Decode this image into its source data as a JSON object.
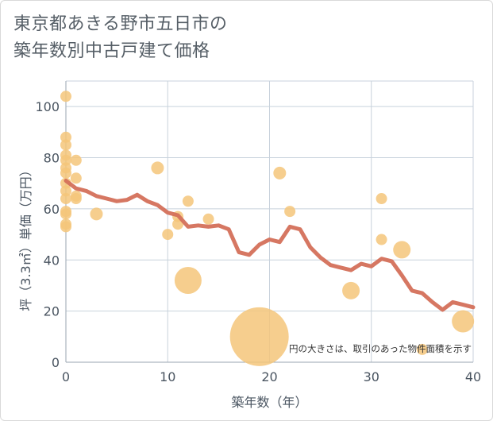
{
  "title_lines": [
    "東京都あきる野市五日市の",
    "築年数別中古戸建て価格"
  ],
  "chart_data": {
    "type": "scatter",
    "title": "東京都あきる野市五日市の築年数別中古戸建て価格",
    "xlabel": "築年数（年）",
    "ylabel": "坪（3.3㎡）単価（万円）",
    "xlim": [
      0,
      40
    ],
    "ylim": [
      0,
      110
    ],
    "x_ticks": [
      0,
      10,
      20,
      30,
      40
    ],
    "y_ticks": [
      0,
      20,
      40,
      60,
      80,
      100
    ],
    "x_tick_labels": [
      "0",
      "10",
      "20",
      "30",
      "40"
    ],
    "y_tick_labels": [
      "0",
      "20",
      "40",
      "60",
      "80",
      "100"
    ],
    "grid": true,
    "note": "円の大きさは、取引のあった物件面積を示す",
    "colors": {
      "bubble": "#f5c57a",
      "trend": "#d4705a",
      "grid": "#c8d2dc"
    },
    "series": [
      {
        "kind": "bubble",
        "points": [
          {
            "x": 0,
            "y": 104,
            "r": 7
          },
          {
            "x": 0,
            "y": 88,
            "r": 7
          },
          {
            "x": 0,
            "y": 85,
            "r": 7
          },
          {
            "x": 0,
            "y": 81,
            "r": 7
          },
          {
            "x": 0,
            "y": 79,
            "r": 7
          },
          {
            "x": 0,
            "y": 76,
            "r": 7
          },
          {
            "x": 0,
            "y": 74,
            "r": 7
          },
          {
            "x": 0,
            "y": 70,
            "r": 7
          },
          {
            "x": 0,
            "y": 67,
            "r": 7
          },
          {
            "x": 0,
            "y": 64,
            "r": 7
          },
          {
            "x": 0,
            "y": 59,
            "r": 7
          },
          {
            "x": 0,
            "y": 58,
            "r": 7
          },
          {
            "x": 0,
            "y": 54,
            "r": 7
          },
          {
            "x": 0,
            "y": 53,
            "r": 7
          },
          {
            "x": 1,
            "y": 79,
            "r": 7
          },
          {
            "x": 1,
            "y": 72,
            "r": 7
          },
          {
            "x": 1,
            "y": 65,
            "r": 7
          },
          {
            "x": 1,
            "y": 64,
            "r": 7
          },
          {
            "x": 3,
            "y": 58,
            "r": 8
          },
          {
            "x": 9,
            "y": 76,
            "r": 8
          },
          {
            "x": 10,
            "y": 50,
            "r": 7
          },
          {
            "x": 11,
            "y": 57,
            "r": 7
          },
          {
            "x": 11,
            "y": 54,
            "r": 7
          },
          {
            "x": 12,
            "y": 63,
            "r": 7
          },
          {
            "x": 12,
            "y": 32,
            "r": 17
          },
          {
            "x": 14,
            "y": 56,
            "r": 7
          },
          {
            "x": 19,
            "y": 10,
            "r": 37
          },
          {
            "x": 21,
            "y": 74,
            "r": 8
          },
          {
            "x": 22,
            "y": 59,
            "r": 7
          },
          {
            "x": 28,
            "y": 28,
            "r": 11
          },
          {
            "x": 31,
            "y": 64,
            "r": 7
          },
          {
            "x": 31,
            "y": 48,
            "r": 7
          },
          {
            "x": 33,
            "y": 44,
            "r": 11
          },
          {
            "x": 35,
            "y": 5,
            "r": 7
          },
          {
            "x": 39,
            "y": 16,
            "r": 14
          }
        ]
      },
      {
        "kind": "line",
        "points": [
          {
            "x": 0,
            "y": 71
          },
          {
            "x": 1,
            "y": 68
          },
          {
            "x": 2,
            "y": 67
          },
          {
            "x": 3,
            "y": 65
          },
          {
            "x": 4,
            "y": 64
          },
          {
            "x": 5,
            "y": 63
          },
          {
            "x": 6,
            "y": 63.5
          },
          {
            "x": 7,
            "y": 65.5
          },
          {
            "x": 8,
            "y": 63
          },
          {
            "x": 9,
            "y": 61.5
          },
          {
            "x": 10,
            "y": 58.5
          },
          {
            "x": 11,
            "y": 57.5
          },
          {
            "x": 12,
            "y": 53
          },
          {
            "x": 13,
            "y": 53.5
          },
          {
            "x": 14,
            "y": 53
          },
          {
            "x": 15,
            "y": 53.5
          },
          {
            "x": 16,
            "y": 52
          },
          {
            "x": 17,
            "y": 43
          },
          {
            "x": 18,
            "y": 42
          },
          {
            "x": 19,
            "y": 46
          },
          {
            "x": 20,
            "y": 48
          },
          {
            "x": 21,
            "y": 47
          },
          {
            "x": 22,
            "y": 53
          },
          {
            "x": 23,
            "y": 52
          },
          {
            "x": 24,
            "y": 45
          },
          {
            "x": 25,
            "y": 41
          },
          {
            "x": 26,
            "y": 38
          },
          {
            "x": 27,
            "y": 37
          },
          {
            "x": 28,
            "y": 36
          },
          {
            "x": 29,
            "y": 38.5
          },
          {
            "x": 30,
            "y": 37.5
          },
          {
            "x": 31,
            "y": 40.5
          },
          {
            "x": 32,
            "y": 39.5
          },
          {
            "x": 33,
            "y": 34
          },
          {
            "x": 34,
            "y": 28
          },
          {
            "x": 35,
            "y": 27
          },
          {
            "x": 36,
            "y": 23.5
          },
          {
            "x": 37,
            "y": 20.5
          },
          {
            "x": 38,
            "y": 23.5
          },
          {
            "x": 39,
            "y": 22.5
          },
          {
            "x": 40,
            "y": 21.5
          }
        ]
      }
    ]
  }
}
